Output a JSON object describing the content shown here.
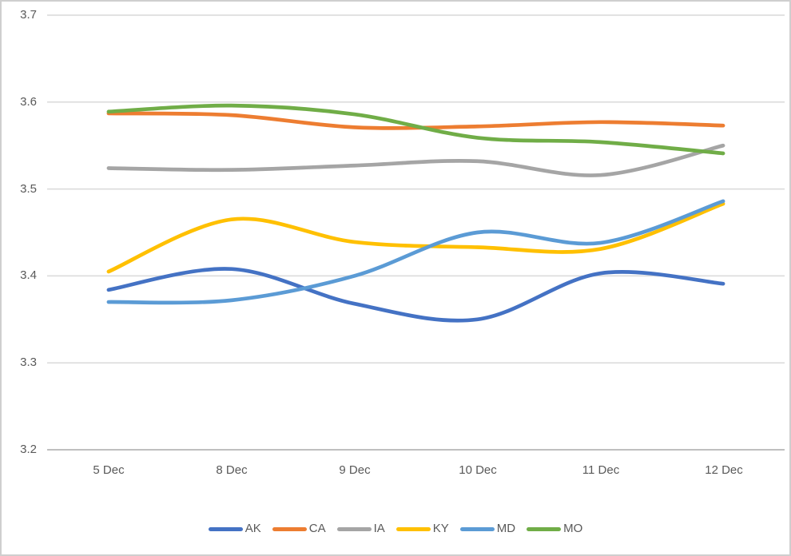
{
  "chart_data": {
    "type": "line",
    "smoothed": true,
    "title": "",
    "xlabel": "",
    "ylabel": "",
    "categories": [
      "5 Dec",
      "8 Dec",
      "9 Dec",
      "10 Dec",
      "11 Dec",
      "12 Dec"
    ],
    "y_tick_labels": [
      "3.7",
      "3.6",
      "3.5",
      "3.4",
      "3.3",
      "3.2"
    ],
    "y_ticks": [
      3.7,
      3.6,
      3.5,
      3.4,
      3.3,
      3.2
    ],
    "ylim": [
      3.2,
      3.7
    ],
    "grid": true,
    "legend_position": "bottom",
    "series": [
      {
        "name": "AK",
        "color": "#4472C4",
        "values": [
          3.384,
          3.408,
          3.368,
          3.35,
          3.403,
          3.391
        ]
      },
      {
        "name": "CA",
        "color": "#ED7D31",
        "values": [
          3.587,
          3.585,
          3.571,
          3.572,
          3.577,
          3.573
        ]
      },
      {
        "name": "IA",
        "color": "#A5A5A5",
        "values": [
          3.524,
          3.522,
          3.527,
          3.532,
          3.516,
          3.55
        ]
      },
      {
        "name": "KY",
        "color": "#FFC000",
        "values": [
          3.405,
          3.465,
          3.439,
          3.433,
          3.431,
          3.483
        ]
      },
      {
        "name": "MD",
        "color": "#5B9BD5",
        "values": [
          3.37,
          3.372,
          3.4,
          3.45,
          3.438,
          3.486
        ]
      },
      {
        "name": "MO",
        "color": "#70AD47",
        "values": [
          3.589,
          3.596,
          3.586,
          3.559,
          3.554,
          3.541
        ]
      }
    ],
    "colors": {
      "gridline": "#D9D9D9",
      "axis_line": "#BFBFBF",
      "tick_text": "#595959",
      "background": "#FFFFFF",
      "figure_border": "#CFCFCF"
    }
  }
}
